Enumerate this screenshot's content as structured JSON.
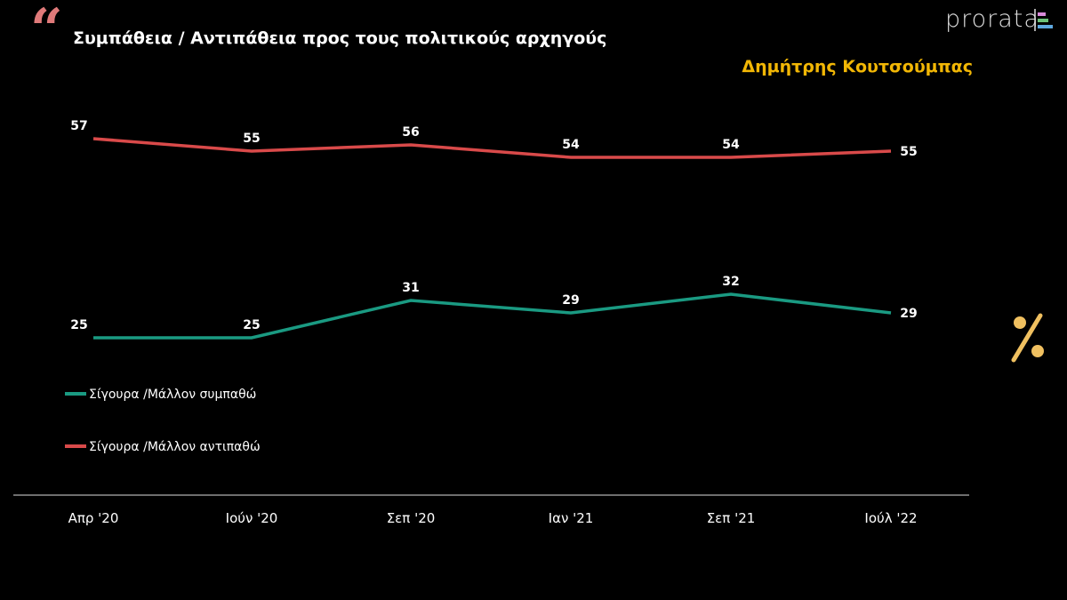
{
  "header": {
    "title": "Συμπάθεια / Αντιπάθεια προς τους πολιτικούς αρχηγούς",
    "subtitle": "Δημήτρης Κουτσούμπας",
    "logo": "prorata",
    "quote_icon": "quote-icon",
    "percent_icon": "percent-icon"
  },
  "chart_data": {
    "type": "line",
    "title": "Συμπάθεια / Αντιπάθεια προς τους πολιτικούς αρχηγούς",
    "categories": [
      "Απρ '20",
      "Ιούν '20",
      "Σεπ '20",
      "Ιαν '21",
      "Σεπ '21",
      "Ιούλ '22"
    ],
    "series": [
      {
        "name": "Σίγουρα /Μάλλον συμπαθώ",
        "color": "#1a9a82",
        "values": [
          25,
          25,
          31,
          29,
          32,
          29
        ]
      },
      {
        "name": "Σίγουρα /Μάλλον αντιπαθώ",
        "color": "#d94a4a",
        "values": [
          57,
          55,
          56,
          54,
          54,
          55
        ]
      }
    ],
    "ylabel": "%",
    "legend": "left-middle",
    "grid": false
  }
}
